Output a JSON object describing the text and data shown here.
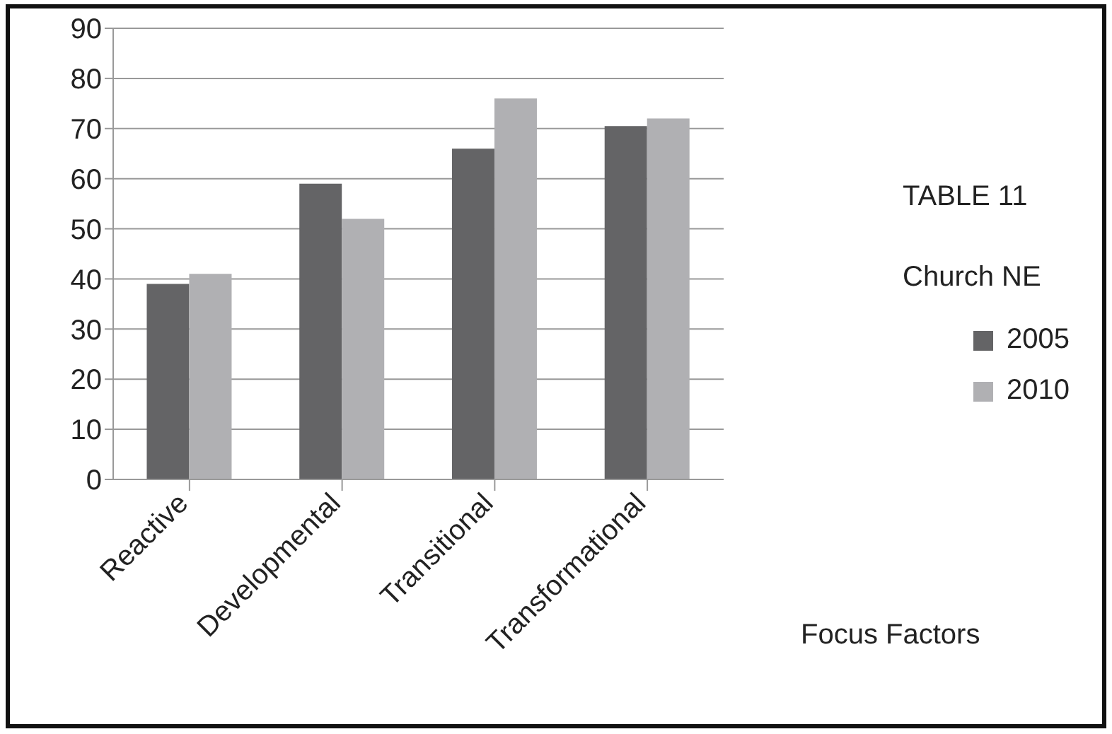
{
  "chart_data": {
    "type": "bar",
    "title": "TABLE 11",
    "subtitle": "Church NE",
    "xlabel": "Focus Factors",
    "categories": [
      "Reactive",
      "Developmental",
      "Transitional",
      "Transformational"
    ],
    "series": [
      {
        "name": "2005",
        "color": "#646466",
        "values": [
          39,
          59,
          66,
          70.5
        ]
      },
      {
        "name": "2010",
        "color": "#b0b0b3",
        "values": [
          41,
          52,
          76,
          72
        ]
      }
    ],
    "ylim": [
      0,
      90
    ],
    "yticks": [
      0,
      10,
      20,
      30,
      40,
      50,
      60,
      70,
      80,
      90
    ],
    "grid": "y",
    "legend": "right"
  }
}
